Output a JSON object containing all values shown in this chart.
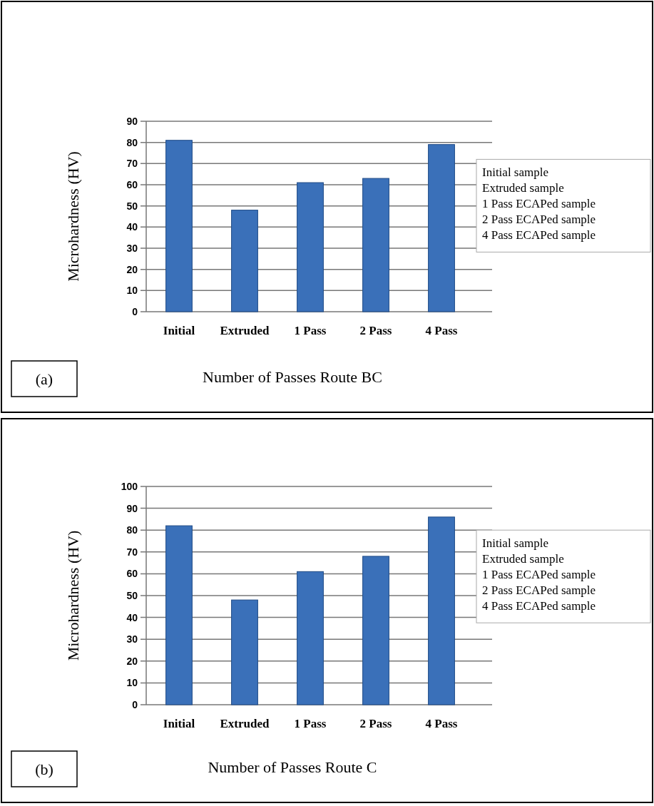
{
  "chart_data": [
    {
      "type": "bar",
      "xlabel": "Number of Passes Route BC",
      "ylabel": "Microhardness (HV)",
      "categories": [
        "Initial",
        "Extruded",
        "1 Pass",
        "2 Pass",
        "4 Pass"
      ],
      "values": [
        81,
        48,
        61,
        63,
        79
      ],
      "color": "#3a70b9",
      "ylim": [
        0,
        90
      ],
      "yticks": [
        0,
        10,
        20,
        30,
        40,
        50,
        60,
        70,
        80,
        90
      ],
      "grid": "y",
      "annotations": [
        "(a)",
        "Initial  sample",
        "Extruded sample",
        "1 Pass ECAPed sample",
        "2 Pass ECAPed sample",
        "4 Pass ECAPed sample"
      ]
    },
    {
      "type": "bar",
      "xlabel": "Number of Passes Route C",
      "ylabel": "Microhardness (HV)",
      "categories": [
        "Initial",
        "Extruded",
        "1 Pass",
        "2 Pass",
        "4 Pass"
      ],
      "values": [
        82,
        48,
        61,
        68,
        86
      ],
      "color": "#3a70b9",
      "ylim": [
        0,
        100
      ],
      "yticks": [
        0,
        10,
        20,
        30,
        40,
        50,
        60,
        70,
        80,
        90,
        100
      ],
      "grid": "y",
      "annotations": [
        "(b)",
        "Initial  sample",
        "Extruded sample",
        "1 Pass ECAPed sample",
        "2 Pass ECAPed sample",
        "4 Pass ECAPed sample"
      ]
    }
  ]
}
